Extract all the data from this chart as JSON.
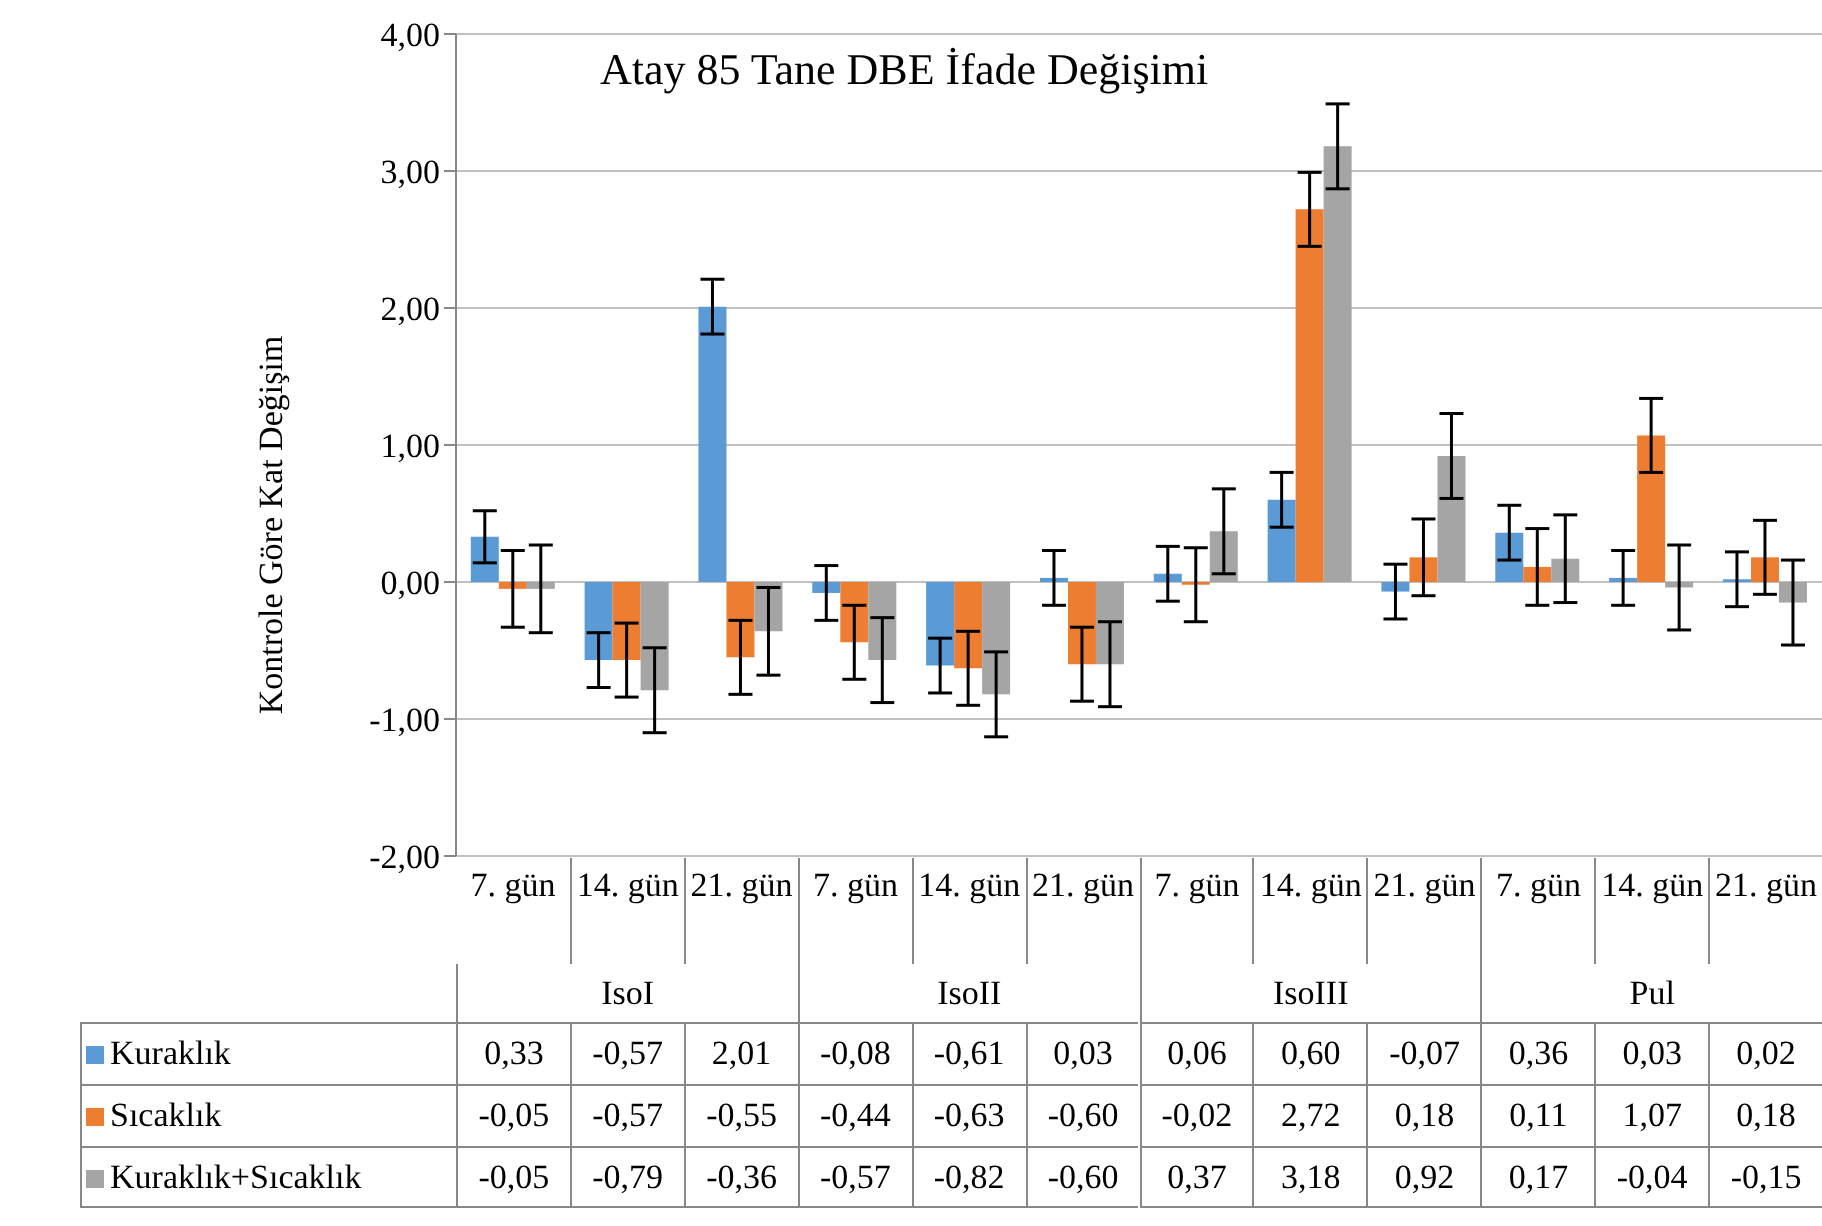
{
  "chart_data": {
    "type": "bar",
    "title": "Atay 85 Tane DBE İfade Değişimi",
    "ylabel": "Kontrole Göre Kat Değişim",
    "categories": [
      "7. gün",
      "14. gün",
      "21. gün",
      "7. gün",
      "14. gün",
      "21. gün",
      "7. gün",
      "14. gün",
      "21. gün",
      "7. gün",
      "14. gün",
      "21. gün"
    ],
    "annotations": [
      "IsoI",
      "IsoII",
      "IsoIII",
      "Pul"
    ],
    "series": [
      {
        "name": "Kuraklık",
        "color": "#5b9bd5",
        "values": [
          0.33,
          -0.57,
          2.01,
          -0.08,
          -0.61,
          0.03,
          0.06,
          0.6,
          -0.07,
          0.36,
          0.03,
          0.02
        ],
        "errors": [
          0.19,
          0.2,
          0.2,
          0.2,
          0.2,
          0.2,
          0.2,
          0.2,
          0.2,
          0.2,
          0.2,
          0.2
        ],
        "value_labels": [
          "0,33",
          "-0,57",
          "2,01",
          "-0,08",
          "-0,61",
          "0,03",
          "0,06",
          "0,60",
          "-0,07",
          "0,36",
          "0,03",
          "0,02"
        ]
      },
      {
        "name": "Sıcaklık",
        "color": "#ed7d31",
        "values": [
          -0.05,
          -0.57,
          -0.55,
          -0.44,
          -0.63,
          -0.6,
          -0.02,
          2.72,
          0.18,
          0.11,
          1.07,
          0.18
        ],
        "errors": [
          0.28,
          0.27,
          0.27,
          0.27,
          0.27,
          0.27,
          0.27,
          0.27,
          0.28,
          0.28,
          0.27,
          0.27
        ],
        "value_labels": [
          "-0,05",
          "-0,57",
          "-0,55",
          "-0,44",
          "-0,63",
          "-0,60",
          "-0,02",
          "2,72",
          "0,18",
          "0,11",
          "1,07",
          "0,18"
        ]
      },
      {
        "name": "Kuraklık+Sıcaklık",
        "color": "#a5a5a5",
        "values": [
          -0.05,
          -0.79,
          -0.36,
          -0.57,
          -0.82,
          -0.6,
          0.37,
          3.18,
          0.92,
          0.17,
          -0.04,
          -0.15
        ],
        "errors": [
          0.32,
          0.31,
          0.32,
          0.31,
          0.31,
          0.31,
          0.31,
          0.31,
          0.31,
          0.32,
          0.31,
          0.31
        ],
        "value_labels": [
          "-0,05",
          "-0,79",
          "-0,36",
          "-0,57",
          "-0,82",
          "-0,60",
          "0,37",
          "3,18",
          "0,92",
          "0,17",
          "-0,04",
          "-0,15"
        ]
      }
    ],
    "ylim": [
      -2,
      4
    ],
    "yticks": [
      {
        "value": -2,
        "label": "-2,00"
      },
      {
        "value": -1,
        "label": "-1,00"
      },
      {
        "value": 0,
        "label": "0,00"
      },
      {
        "value": 1,
        "label": "1,00"
      },
      {
        "value": 2,
        "label": "2,00"
      },
      {
        "value": 3,
        "label": "3,00"
      },
      {
        "value": 4,
        "label": "4,00"
      }
    ],
    "grid": "y",
    "legend": "bottom"
  }
}
